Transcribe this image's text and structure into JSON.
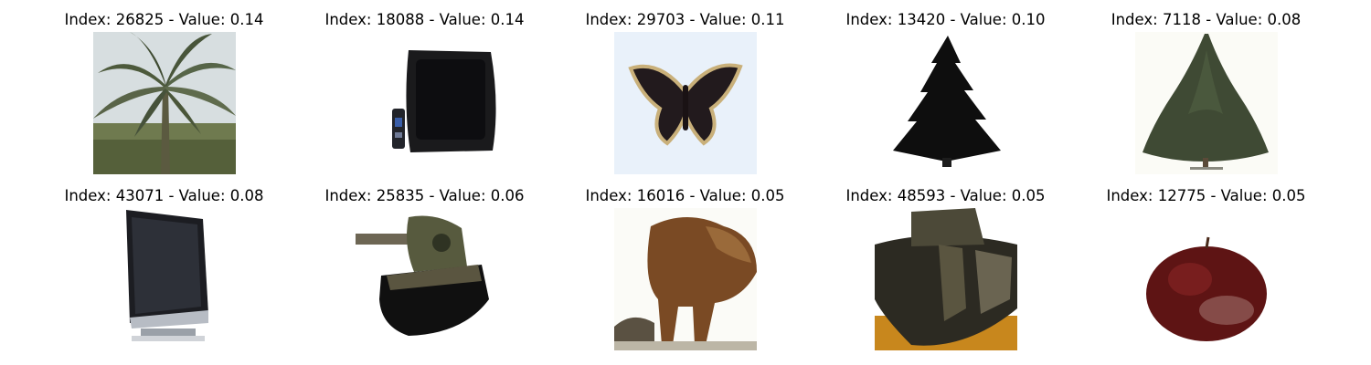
{
  "images": [
    {
      "title": "Index: 26825 - Value: 0.14",
      "subject": "palm-tree"
    },
    {
      "title": "Index: 18088 - Value: 0.14",
      "subject": "crt-television"
    },
    {
      "title": "Index: 29703 - Value: 0.11",
      "subject": "butterfly"
    },
    {
      "title": "Index: 13420 - Value: 0.10",
      "subject": "pine-tree-silhouette"
    },
    {
      "title": "Index: 7118 - Value: 0.08",
      "subject": "conifer-tree"
    },
    {
      "title": "Index: 43071 - Value: 0.08",
      "subject": "flat-screen-tv"
    },
    {
      "title": "Index: 25835 - Value: 0.06",
      "subject": "tank"
    },
    {
      "title": "Index: 16016 - Value: 0.05",
      "subject": "brown-animal"
    },
    {
      "title": "Index: 48593 - Value: 0.05",
      "subject": "armored-vehicle"
    },
    {
      "title": "Index: 12775 - Value: 0.05",
      "subject": "apple"
    }
  ]
}
